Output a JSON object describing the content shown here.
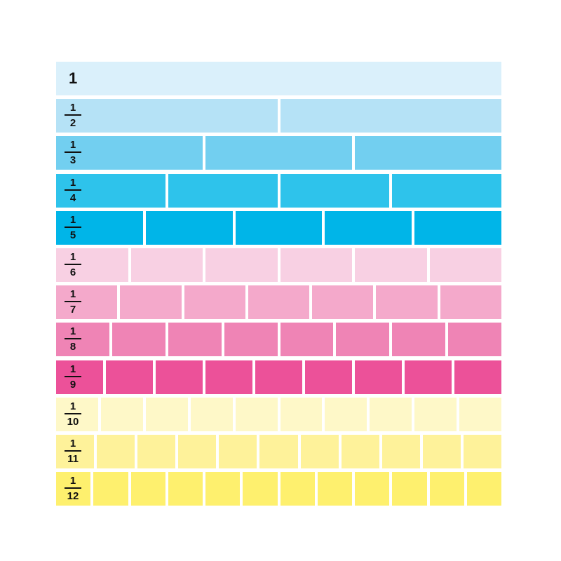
{
  "rows": [
    {
      "label": "1",
      "denominator": 1,
      "color": "#daf0fb"
    },
    {
      "numerator": "1",
      "denominator": 2,
      "label": "2",
      "color": "#b5e2f6"
    },
    {
      "numerator": "1",
      "denominator": 3,
      "label": "3",
      "color": "#72cff0"
    },
    {
      "numerator": "1",
      "denominator": 4,
      "label": "4",
      "color": "#2ec3eb"
    },
    {
      "numerator": "1",
      "denominator": 5,
      "label": "5",
      "color": "#00b5e8"
    },
    {
      "numerator": "1",
      "denominator": 6,
      "label": "6",
      "color": "#f8d0e3"
    },
    {
      "numerator": "1",
      "denominator": 7,
      "label": "7",
      "color": "#f4a9cb"
    },
    {
      "numerator": "1",
      "denominator": 8,
      "label": "8",
      "color": "#ef84b5"
    },
    {
      "numerator": "1",
      "denominator": 9,
      "label": "9",
      "color": "#ec5199"
    },
    {
      "numerator": "1",
      "denominator": 10,
      "label": "10",
      "color": "#fef8c8"
    },
    {
      "numerator": "1",
      "denominator": 11,
      "label": "11",
      "color": "#fef29a"
    },
    {
      "numerator": "1",
      "denominator": 12,
      "label": "12",
      "color": "#fef06e"
    }
  ]
}
